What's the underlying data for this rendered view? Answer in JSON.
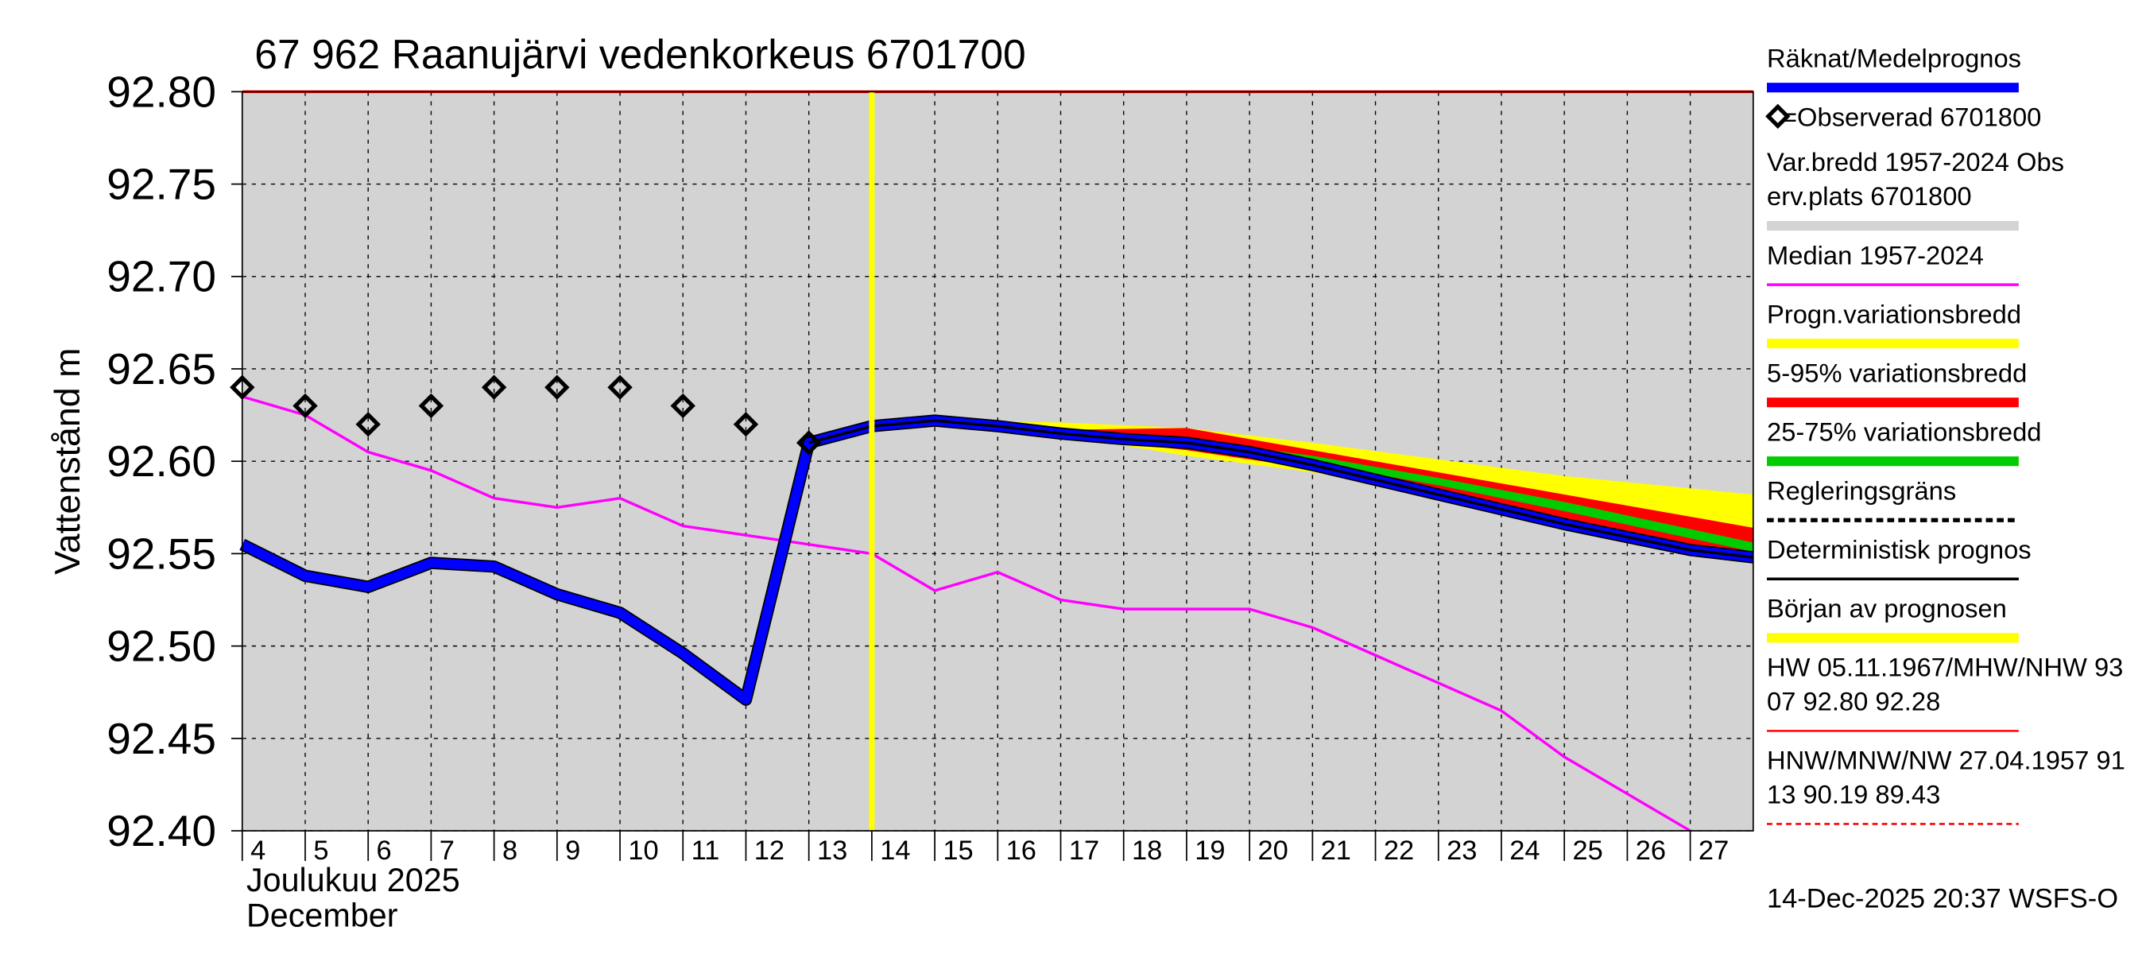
{
  "chart_data": {
    "type": "line",
    "title": "67 962 Raanujärvi vedenkorkeus 6701700",
    "ylabel": "Vattenstånd m",
    "xlabel_lines": [
      "Joulukuu  2025",
      "December"
    ],
    "footer": "14-Dec-2025 20:37 WSFS-O",
    "xlim": [
      4,
      28
    ],
    "ylim": [
      92.4,
      92.8
    ],
    "xticks": [
      4,
      5,
      6,
      7,
      8,
      9,
      10,
      11,
      12,
      13,
      14,
      15,
      16,
      17,
      18,
      19,
      20,
      21,
      22,
      23,
      24,
      25,
      26,
      27
    ],
    "yticks": [
      {
        "value": 92.4,
        "label": "92.40"
      },
      92.45,
      {
        "value": 92.5,
        "label": "92.50"
      },
      92.55,
      {
        "value": 92.6,
        "label": "92.60"
      },
      92.65,
      {
        "value": 92.7,
        "label": "92.70"
      },
      92.75,
      {
        "value": 92.8,
        "label": "92.80"
      }
    ],
    "grid": true,
    "background": "#d3d3d3",
    "forecast_start": {
      "x": 14,
      "color": "#ffff00"
    },
    "reference_lines": [
      {
        "value": 92.8,
        "color": "#ff0000"
      }
    ],
    "bands": [
      {
        "color": "#ffff00",
        "x": [
          15,
          17,
          19,
          21,
          23,
          25,
          28
        ],
        "upper": [
          92.622,
          92.621,
          92.618,
          92.61,
          92.601,
          92.592,
          92.582
        ],
        "lower": [
          92.622,
          92.614,
          92.603,
          92.594,
          92.582,
          92.567,
          92.545
        ]
      },
      {
        "color": "#ff0000",
        "x": [
          15,
          17,
          19,
          21,
          23,
          25,
          28
        ],
        "upper": [
          92.622,
          92.617,
          92.618,
          92.606,
          92.594,
          92.582,
          92.564
        ],
        "lower": [
          92.622,
          92.614,
          92.606,
          92.596,
          92.585,
          92.569,
          92.546
        ]
      },
      {
        "color": "#00cc00",
        "x": [
          15,
          17,
          19,
          21,
          23,
          25,
          28
        ],
        "upper": [
          92.622,
          92.616,
          92.612,
          92.603,
          92.591,
          92.578,
          92.556
        ],
        "lower": [
          92.622,
          92.615,
          92.609,
          92.599,
          92.587,
          92.573,
          92.551
        ]
      }
    ],
    "series": [
      {
        "color": "#ff00ff",
        "style": "line",
        "x": [
          4,
          5,
          6,
          7,
          8,
          9,
          10,
          11,
          12,
          13,
          14,
          15,
          16,
          17,
          18,
          19,
          20,
          21,
          22,
          23,
          24,
          25,
          26,
          27
        ],
        "values": [
          92.635,
          92.625,
          92.605,
          92.595,
          92.58,
          92.575,
          92.58,
          92.565,
          92.56,
          92.555,
          92.55,
          92.53,
          92.54,
          92.525,
          92.52,
          92.52,
          92.52,
          92.51,
          92.495,
          92.48,
          92.465,
          92.44,
          92.42,
          92.4
        ]
      },
      {
        "color": "#0000ff",
        "style": "thick",
        "x": [
          4,
          5,
          6,
          7,
          8,
          9,
          10,
          11,
          12,
          13,
          14,
          15,
          16,
          17,
          18,
          19,
          20,
          21,
          22,
          23,
          24,
          25,
          26,
          27,
          28
        ],
        "values": [
          92.555,
          92.538,
          92.532,
          92.545,
          92.543,
          92.528,
          92.518,
          92.496,
          92.471,
          92.61,
          92.619,
          92.622,
          92.619,
          92.615,
          92.612,
          92.61,
          92.605,
          92.598,
          92.59,
          92.582,
          92.574,
          92.566,
          92.559,
          92.552,
          92.548
        ]
      },
      {
        "color": "#000000",
        "style": "line",
        "x": [
          13,
          14,
          15,
          16,
          17,
          18,
          19,
          20,
          21,
          22,
          23,
          24,
          25,
          26,
          27,
          28
        ],
        "values": [
          92.61,
          92.619,
          92.622,
          92.619,
          92.615,
          92.612,
          92.61,
          92.605,
          92.598,
          92.59,
          92.582,
          92.574,
          92.566,
          92.559,
          92.552,
          92.548
        ]
      },
      {
        "color": "#000000",
        "style": "diamond",
        "x": [
          4,
          5,
          6,
          7,
          8,
          9,
          10,
          11,
          12,
          13
        ],
        "values": [
          92.64,
          92.63,
          92.62,
          92.63,
          92.64,
          92.64,
          92.64,
          92.63,
          92.62,
          92.61
        ]
      }
    ],
    "legend": [
      {
        "lines": [
          "Räknat/Medelprognos"
        ],
        "color": "#0000ff",
        "style": "thick"
      },
      {
        "lines": [
          "=Observerad 6701800"
        ],
        "color": "#000000",
        "style": "diamond"
      },
      {
        "lines": [
          "Var.bredd 1957-2024   Obs",
          "erv.plats 6701800"
        ],
        "color": "#d3d3d3",
        "style": "band"
      },
      {
        "lines": [
          "Median 1957-2024"
        ],
        "color": "#ff00ff",
        "style": "line"
      },
      {
        "lines": [
          "Progn.variationsbredd"
        ],
        "color": "#ffff00",
        "style": "band"
      },
      {
        "lines": [
          "5-95% variationsbredd"
        ],
        "color": "#ff0000",
        "style": "band"
      },
      {
        "lines": [
          "25-75% variationsbredd"
        ],
        "color": "#00cc00",
        "style": "band"
      },
      {
        "lines": [
          "Regleringsgräns"
        ],
        "color": "#000000",
        "style": "dashed"
      },
      {
        "lines": [
          "Deterministisk prognos"
        ],
        "color": "#000000",
        "style": "line"
      },
      {
        "lines": [
          "Början av prognosen"
        ],
        "color": "#ffff00",
        "style": "band"
      },
      {
        "lines": [
          "HW 05.11.1967/MHW/NHW 93",
          "07 92.80 92.28"
        ],
        "color": "#ff0000",
        "style": "thin"
      },
      {
        "lines": [
          "HNW/MNW/NW 27.04.1957 91",
          "13 90.19 89.43"
        ],
        "color": "#ff0000",
        "style": "thindashed"
      }
    ]
  }
}
